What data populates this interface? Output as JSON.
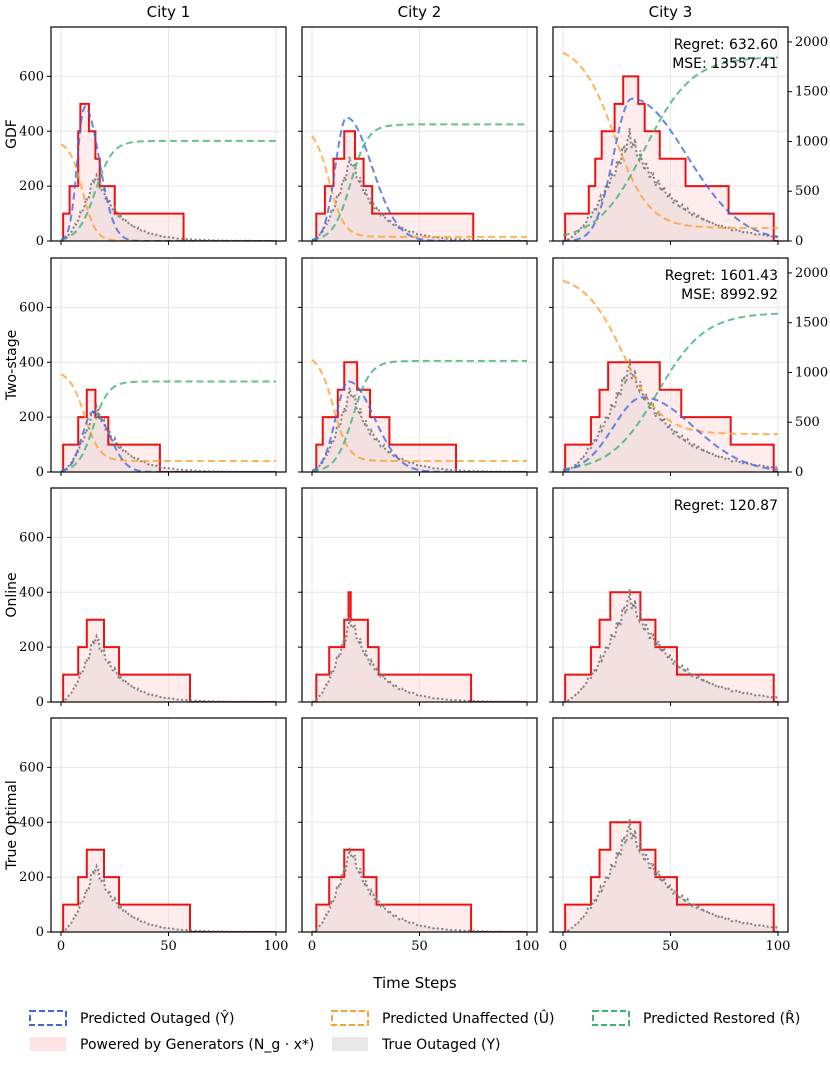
{
  "chart_data": {
    "type": "line",
    "columns": [
      "City 1",
      "City 2",
      "City 3"
    ],
    "rows": [
      "GDF",
      "Two-stage",
      "Online",
      "True Optimal"
    ],
    "xlabel": "Time Steps",
    "xlim": [
      0,
      100
    ],
    "xticks": [
      0,
      50,
      100
    ],
    "ylim_left": [
      0,
      780
    ],
    "yticks_left": [
      0,
      200,
      400,
      600
    ],
    "ylim_right": [
      0,
      2150
    ],
    "yticks_right": [
      0,
      500,
      1000,
      1500,
      2000
    ],
    "legend": [
      {
        "key": "predicted_outaged",
        "label": "Predicted Outaged (Ŷ)",
        "color": "#4169e1",
        "style": "dashed"
      },
      {
        "key": "predicted_unaffected",
        "label": "Predicted Unaffected (Û)",
        "color": "#ffa033",
        "style": "dashed"
      },
      {
        "key": "predicted_restored",
        "label": "Predicted Restored (R̂)",
        "color": "#3cb371",
        "style": "dashed"
      },
      {
        "key": "powered",
        "label": "Powered by Generators (N_g · x*)",
        "color": "#ff0000",
        "fill": "#ffe4e6"
      },
      {
        "key": "true_outaged",
        "label": "True Outaged (Y)",
        "color": "#808080",
        "fill": "#e8e8e8"
      }
    ],
    "annotations": {
      "GDF|City 3": [
        "Regret: 632.60",
        "MSE: 13557.41"
      ],
      "Two-stage|City 3": [
        "Regret: 1601.43",
        "MSE: 8992.92"
      ],
      "Online|City 3": [
        "Regret: 120.87"
      ]
    },
    "true_outaged": {
      "City 1": {
        "peak_t": 16,
        "peak": 240,
        "rise": 5,
        "fall": 13
      },
      "City 2": {
        "peak_t": 18,
        "peak": 300,
        "rise": 6,
        "fall": 14
      },
      "City 3": {
        "peak_t": 31,
        "peak": 380,
        "rise": 10,
        "fall": 24
      }
    },
    "powered": {
      "GDF": {
        "City 1": [
          [
            0,
            0
          ],
          [
            1,
            100
          ],
          [
            4,
            200
          ],
          [
            8,
            400
          ],
          [
            9,
            500
          ],
          [
            13,
            400
          ],
          [
            16,
            300
          ],
          [
            18,
            200
          ],
          [
            25,
            100
          ],
          [
            57,
            0
          ]
        ],
        "City 2": [
          [
            0,
            0
          ],
          [
            2,
            100
          ],
          [
            6,
            200
          ],
          [
            10,
            300
          ],
          [
            15,
            400
          ],
          [
            20,
            300
          ],
          [
            24,
            200
          ],
          [
            28,
            100
          ],
          [
            75,
            0
          ]
        ],
        "City 3": [
          [
            0,
            0
          ],
          [
            1,
            100
          ],
          [
            12,
            200
          ],
          [
            15,
            300
          ],
          [
            18,
            400
          ],
          [
            24,
            500
          ],
          [
            28,
            600
          ],
          [
            35,
            500
          ],
          [
            38,
            400
          ],
          [
            45,
            300
          ],
          [
            57,
            200
          ],
          [
            77,
            100
          ],
          [
            98,
            0
          ]
        ]
      },
      "Two-stage": {
        "City 1": [
          [
            0,
            0
          ],
          [
            1,
            100
          ],
          [
            8,
            200
          ],
          [
            12,
            300
          ],
          [
            16,
            200
          ],
          [
            22,
            100
          ],
          [
            46,
            0
          ]
        ],
        "City 2": [
          [
            0,
            0
          ],
          [
            2,
            100
          ],
          [
            5,
            200
          ],
          [
            12,
            300
          ],
          [
            15,
            400
          ],
          [
            21,
            300
          ],
          [
            27,
            200
          ],
          [
            36,
            100
          ],
          [
            67,
            0
          ]
        ],
        "City 3": [
          [
            0,
            0
          ],
          [
            1,
            100
          ],
          [
            13,
            200
          ],
          [
            17,
            300
          ],
          [
            21,
            400
          ],
          [
            45,
            300
          ],
          [
            55,
            200
          ],
          [
            78,
            100
          ],
          [
            98,
            0
          ]
        ]
      },
      "Online": {
        "City 1": [
          [
            0,
            0
          ],
          [
            1,
            100
          ],
          [
            8,
            200
          ],
          [
            12,
            300
          ],
          [
            20,
            200
          ],
          [
            27,
            100
          ],
          [
            60,
            0
          ]
        ],
        "City 2": [
          [
            0,
            0
          ],
          [
            2,
            100
          ],
          [
            8,
            200
          ],
          [
            15,
            300
          ],
          [
            17,
            400
          ],
          [
            18,
            300
          ],
          [
            26,
            200
          ],
          [
            31,
            100
          ],
          [
            74,
            0
          ]
        ],
        "City 3": [
          [
            0,
            0
          ],
          [
            1,
            100
          ],
          [
            13,
            200
          ],
          [
            17,
            300
          ],
          [
            22,
            400
          ],
          [
            36,
            300
          ],
          [
            43,
            200
          ],
          [
            53,
            100
          ],
          [
            98,
            0
          ]
        ]
      },
      "True Optimal": {
        "City 1": [
          [
            0,
            0
          ],
          [
            1,
            100
          ],
          [
            8,
            200
          ],
          [
            12,
            300
          ],
          [
            20,
            200
          ],
          [
            27,
            100
          ],
          [
            60,
            0
          ]
        ],
        "City 2": [
          [
            0,
            0
          ],
          [
            2,
            100
          ],
          [
            8,
            200
          ],
          [
            15,
            300
          ],
          [
            24,
            200
          ],
          [
            30,
            100
          ],
          [
            74,
            0
          ]
        ],
        "City 3": [
          [
            0,
            0
          ],
          [
            1,
            100
          ],
          [
            13,
            200
          ],
          [
            17,
            300
          ],
          [
            22,
            400
          ],
          [
            36,
            300
          ],
          [
            43,
            200
          ],
          [
            53,
            100
          ],
          [
            98,
            0
          ]
        ]
      }
    },
    "predicted_outaged": {
      "GDF": {
        "City 1": {
          "peak_t": 11,
          "peak": 490,
          "rise": 4,
          "fall": 8
        },
        "City 2": {
          "peak_t": 16,
          "peak": 450,
          "rise": 6,
          "fall": 14
        },
        "City 3": {
          "peak_t": 32,
          "peak": 1430,
          "rise": 10,
          "fall": 30,
          "axis": "right"
        }
      },
      "Two-stage": {
        "City 1": {
          "peak_t": 15,
          "peak": 220,
          "rise": 6,
          "fall": 9
        },
        "City 2": {
          "peak_t": 17,
          "peak": 330,
          "rise": 7,
          "fall": 14
        },
        "City 3": {
          "peak_t": 37,
          "peak": 750,
          "rise": 16,
          "fall": 28,
          "axis": "right"
        }
      }
    },
    "predicted_unaffected": {
      "GDF": {
        "City 1": {
          "start": 365,
          "end": 0,
          "mid": 10,
          "width": 3
        },
        "City 2": {
          "start": 420,
          "end": 15,
          "mid": 8,
          "width": 3.5
        },
        "City 3": {
          "start": 1980,
          "end": 130,
          "mid": 24,
          "width": 8,
          "axis": "right"
        }
      },
      "Two-stage": {
        "City 1": {
          "start": 370,
          "end": 40,
          "mid": 11,
          "width": 3.5
        },
        "City 2": {
          "start": 430,
          "end": 40,
          "mid": 10,
          "width": 3.5
        },
        "City 3": {
          "start": 1990,
          "end": 380,
          "mid": 28,
          "width": 9,
          "axis": "right"
        }
      }
    },
    "predicted_restored": {
      "GDF": {
        "City 1": {
          "end": 365,
          "mid": 16,
          "width": 4
        },
        "City 2": {
          "end": 425,
          "mid": 18,
          "width": 4
        },
        "City 3": {
          "end": 1850,
          "mid": 38,
          "width": 11,
          "axis": "right"
        }
      },
      "Two-stage": {
        "City 1": {
          "end": 330,
          "mid": 15,
          "width": 3.5
        },
        "City 2": {
          "end": 405,
          "mid": 19,
          "width": 4
        },
        "City 3": {
          "end": 1600,
          "mid": 44,
          "width": 11,
          "axis": "right"
        }
      }
    }
  }
}
